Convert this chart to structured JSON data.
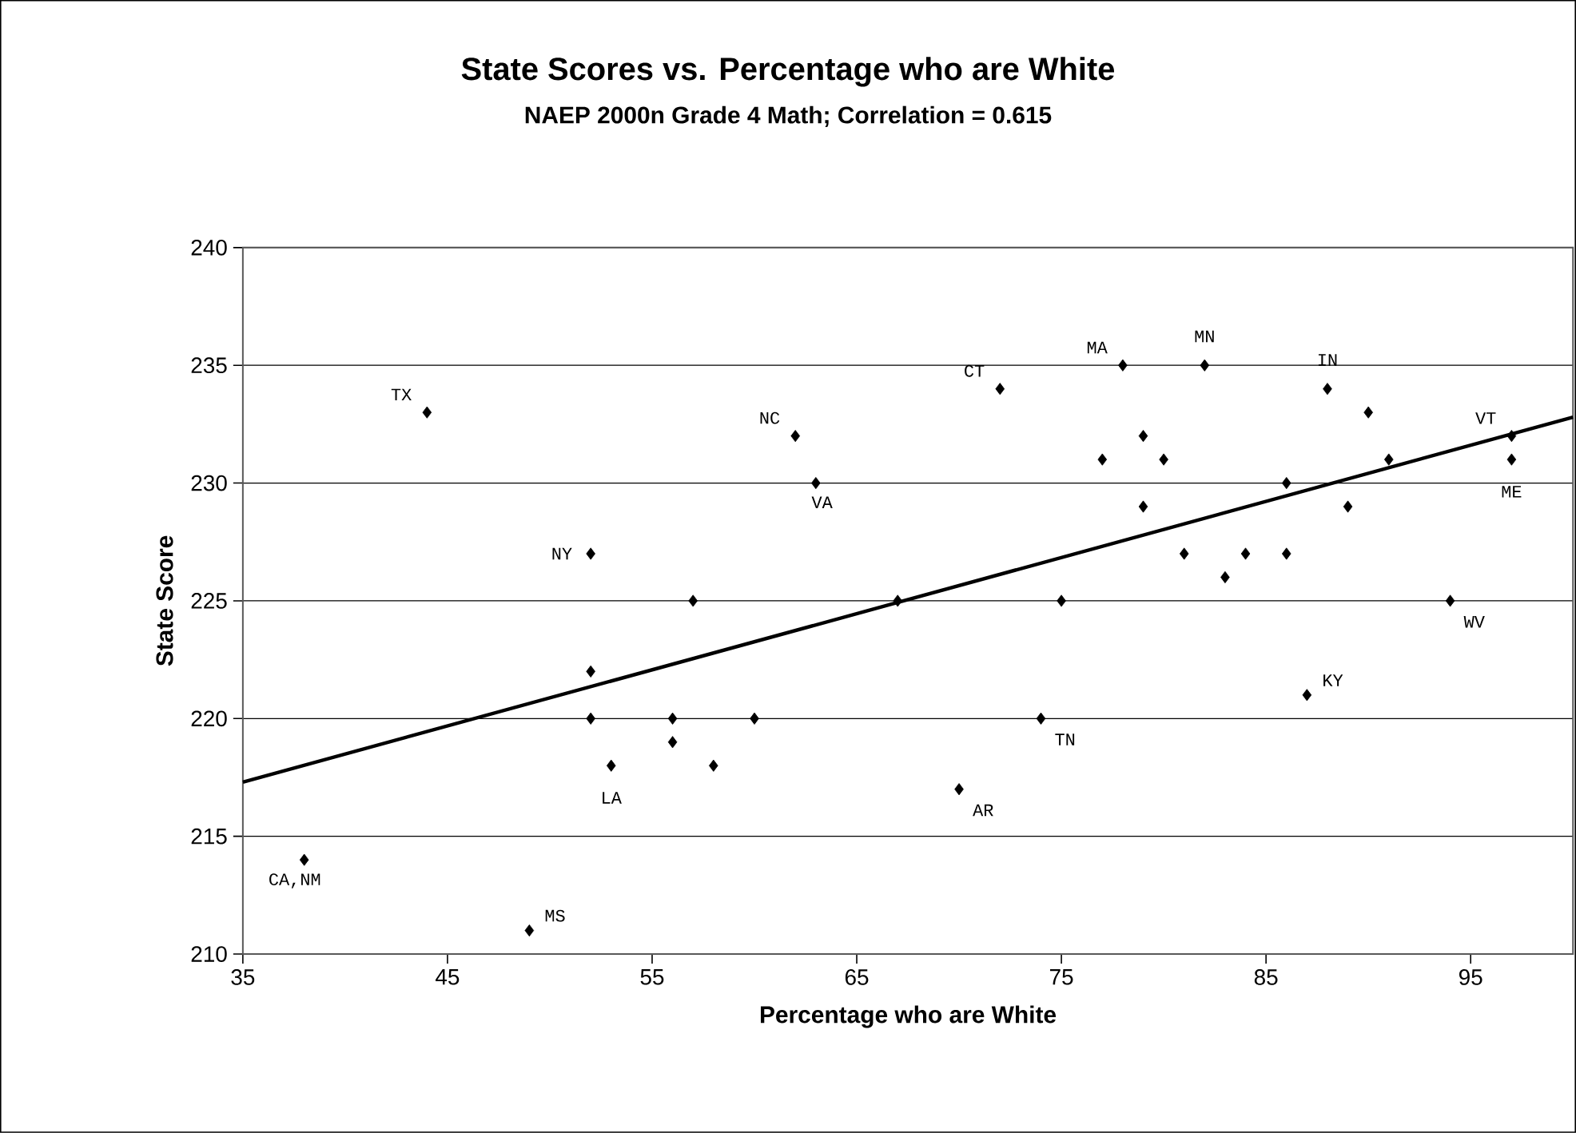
{
  "chart_data": {
    "type": "scatter",
    "title": "State Scores vs. Percentage who are White",
    "subtitle": "NAEP 2000n Grade 4 Math; Correlation = 0.615",
    "xlabel": "Percentage who are White",
    "ylabel": "State Score",
    "xlim": [
      35,
      100
    ],
    "xticks": [
      35,
      45,
      55,
      65,
      75,
      85,
      95
    ],
    "ylim": [
      210,
      240
    ],
    "yticks": [
      210,
      215,
      220,
      225,
      230,
      235,
      240
    ],
    "grid": "y",
    "series": [
      {
        "marker": "diamond",
        "color": "#000000",
        "x": [
          38,
          44,
          49,
          52,
          52,
          52,
          53,
          56,
          56,
          57,
          58,
          60,
          62,
          63,
          67,
          70,
          72,
          74,
          75,
          77,
          78,
          79,
          79,
          80,
          81,
          82,
          83,
          84,
          86,
          86,
          87,
          88,
          89,
          90,
          91,
          94,
          97,
          97
        ],
        "values": [
          214,
          233,
          211,
          227,
          222,
          220,
          218,
          220,
          219,
          225,
          218,
          220,
          232,
          230,
          225,
          217,
          234,
          220,
          225,
          231,
          235,
          232,
          229,
          231,
          227,
          235,
          226,
          227,
          230,
          227,
          221,
          234,
          229,
          233,
          231,
          225,
          232,
          231
        ]
      },
      {
        "type": "line",
        "marker": "none",
        "line_style": "solid",
        "color": "#000000",
        "x": [
          35,
          100
        ],
        "values": [
          217.3,
          232.8
        ]
      }
    ],
    "annotations": [
      {
        "text": "TX",
        "x": 44,
        "y": 233
      },
      {
        "text": "NC",
        "x": 62,
        "y": 232
      },
      {
        "text": "VA",
        "x": 63,
        "y": 230
      },
      {
        "text": "NY",
        "x": 52,
        "y": 227
      },
      {
        "text": "LA",
        "x": 53,
        "y": 218
      },
      {
        "text": "CA,NM",
        "x": 38,
        "y": 214
      },
      {
        "text": "MS",
        "x": 49,
        "y": 211
      },
      {
        "text": "CT",
        "x": 72,
        "y": 234
      },
      {
        "text": "AR",
        "x": 70,
        "y": 217
      },
      {
        "text": "TN",
        "x": 74,
        "y": 220
      },
      {
        "text": "MA",
        "x": 78,
        "y": 235
      },
      {
        "text": "MN",
        "x": 82,
        "y": 235
      },
      {
        "text": "IN",
        "x": 88,
        "y": 234
      },
      {
        "text": "KY",
        "x": 87,
        "y": 221
      },
      {
        "text": "VT",
        "x": 97,
        "y": 232
      },
      {
        "text": "ME",
        "x": 97,
        "y": 231
      },
      {
        "text": "WV",
        "x": 94,
        "y": 225
      }
    ]
  }
}
